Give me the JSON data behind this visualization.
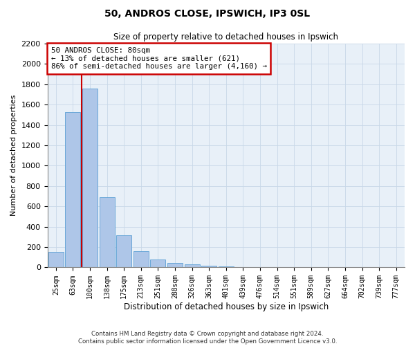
{
  "title1": "50, ANDROS CLOSE, IPSWICH, IP3 0SL",
  "title2": "Size of property relative to detached houses in Ipswich",
  "xlabel": "Distribution of detached houses by size in Ipswich",
  "ylabel": "Number of detached properties",
  "categories": [
    "25sqm",
    "63sqm",
    "100sqm",
    "138sqm",
    "175sqm",
    "213sqm",
    "251sqm",
    "288sqm",
    "326sqm",
    "363sqm",
    "401sqm",
    "439sqm",
    "476sqm",
    "514sqm",
    "551sqm",
    "589sqm",
    "627sqm",
    "664sqm",
    "702sqm",
    "739sqm",
    "777sqm"
  ],
  "values": [
    155,
    1530,
    1760,
    690,
    315,
    160,
    80,
    45,
    28,
    18,
    7,
    0,
    0,
    0,
    0,
    0,
    0,
    0,
    0,
    0,
    0
  ],
  "bar_color": "#aec6e8",
  "bar_edge_color": "#5a9fd4",
  "vline_color": "#cc0000",
  "annotation_text": "50 ANDROS CLOSE: 80sqm\n← 13% of detached houses are smaller (621)\n86% of semi-detached houses are larger (4,160) →",
  "annotation_box_color": "#ffffff",
  "annotation_box_edge": "#cc0000",
  "ylim": [
    0,
    2200
  ],
  "yticks": [
    0,
    200,
    400,
    600,
    800,
    1000,
    1200,
    1400,
    1600,
    1800,
    2000,
    2200
  ],
  "grid_color": "#c8d8e8",
  "footnote": "Contains HM Land Registry data © Crown copyright and database right 2024.\nContains public sector information licensed under the Open Government Licence v3.0.",
  "bg_color": "#e8f0f8"
}
